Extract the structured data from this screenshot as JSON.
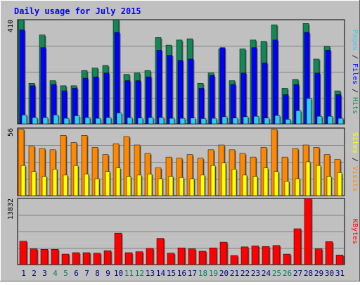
{
  "chart_data": {
    "type": "bar",
    "title": "Daily usage for July 2015",
    "categories": [
      "1",
      "2",
      "3",
      "4",
      "5",
      "6",
      "7",
      "8",
      "9",
      "10",
      "11",
      "12",
      "13",
      "14",
      "15",
      "16",
      "17",
      "18",
      "19",
      "20",
      "21",
      "22",
      "23",
      "24",
      "25",
      "26",
      "27",
      "28",
      "29",
      "30",
      "31"
    ],
    "weekend_days": [
      "4",
      "5",
      "11",
      "12",
      "18",
      "19",
      "25",
      "26"
    ],
    "panels": [
      {
        "id": "pages-files-hits",
        "ymax_label": "410",
        "ylim": [
          0,
          410
        ],
        "series": [
          {
            "name": "Hits",
            "color": "#118855",
            "values": [
              410,
              160,
              350,
              170,
              150,
              150,
              210,
              220,
              230,
              410,
              195,
              200,
              210,
              340,
              310,
              330,
              335,
              160,
              200,
              295,
              170,
              295,
              330,
              325,
              390,
              140,
              175,
              395,
              255,
              305,
              130
            ]
          },
          {
            "name": "Files",
            "color": "#0000ff",
            "values": [
              370,
              150,
              300,
              155,
              130,
              140,
              180,
              185,
              200,
              360,
              170,
              170,
              185,
              290,
              270,
              250,
              255,
              140,
              190,
              300,
              155,
              200,
              300,
              240,
              330,
              115,
              155,
              360,
              200,
              290,
              115
            ]
          },
          {
            "name": "Pages",
            "color": "#33ccee",
            "values": [
              35,
              25,
              25,
              35,
              22,
              32,
              25,
              22,
              25,
              43,
              25,
              23,
              25,
              25,
              22,
              22,
              23,
              21,
              22,
              28,
              23,
              28,
              30,
              23,
              33,
              18,
              52,
              100,
              30,
              30,
              22
            ]
          }
        ],
        "right_label": [
          "Pages",
          "Files",
          "Hits"
        ]
      },
      {
        "id": "sites-visits",
        "ymax_label": "56",
        "ylim": [
          0,
          56
        ],
        "series": [
          {
            "name": "Visits",
            "color": "#ff8800",
            "values": [
              55,
              41,
              39,
              38,
              50,
              44,
              50,
              40,
              34,
              43,
              49,
              42,
              35,
              23,
              32,
              31,
              34,
              31,
              38,
              42,
              38,
              35,
              32,
              40,
              55,
              32,
              39,
              42,
              40,
              34,
              30
            ]
          },
          {
            "name": "Sites",
            "color": "#ffff00",
            "values": [
              25,
              20,
              16,
              22,
              17,
              25,
              18,
              14,
              20,
              23,
              16,
              17,
              18,
              14,
              16,
              15,
              14,
              17,
              25,
              27,
              22,
              17,
              16,
              23,
              20,
              12,
              14,
              28,
              25,
              16,
              19
            ]
          }
        ],
        "right_label": [
          "Sites",
          "Visits"
        ]
      },
      {
        "id": "kbytes",
        "ymax_label": "13832",
        "ylim": [
          0,
          13832
        ],
        "series": [
          {
            "name": "KBytes",
            "color": "#ff0000",
            "values": [
              4900,
              3300,
              3200,
              3200,
              2200,
              2500,
              2500,
              2400,
              2900,
              6600,
              2500,
              2700,
              3400,
              5500,
              2400,
              3500,
              3300,
              2800,
              3500,
              4700,
              1900,
              3700,
              3900,
              3800,
              4000,
              2200,
              7500,
              13832,
              3300,
              4800,
              2000
            ]
          }
        ],
        "right_label": [
          "KBytes"
        ]
      }
    ],
    "colors": {
      "background": "#c0c0c0",
      "title": "#0000ff",
      "day_label": "#000080",
      "weekend_label": "#00805c"
    }
  }
}
